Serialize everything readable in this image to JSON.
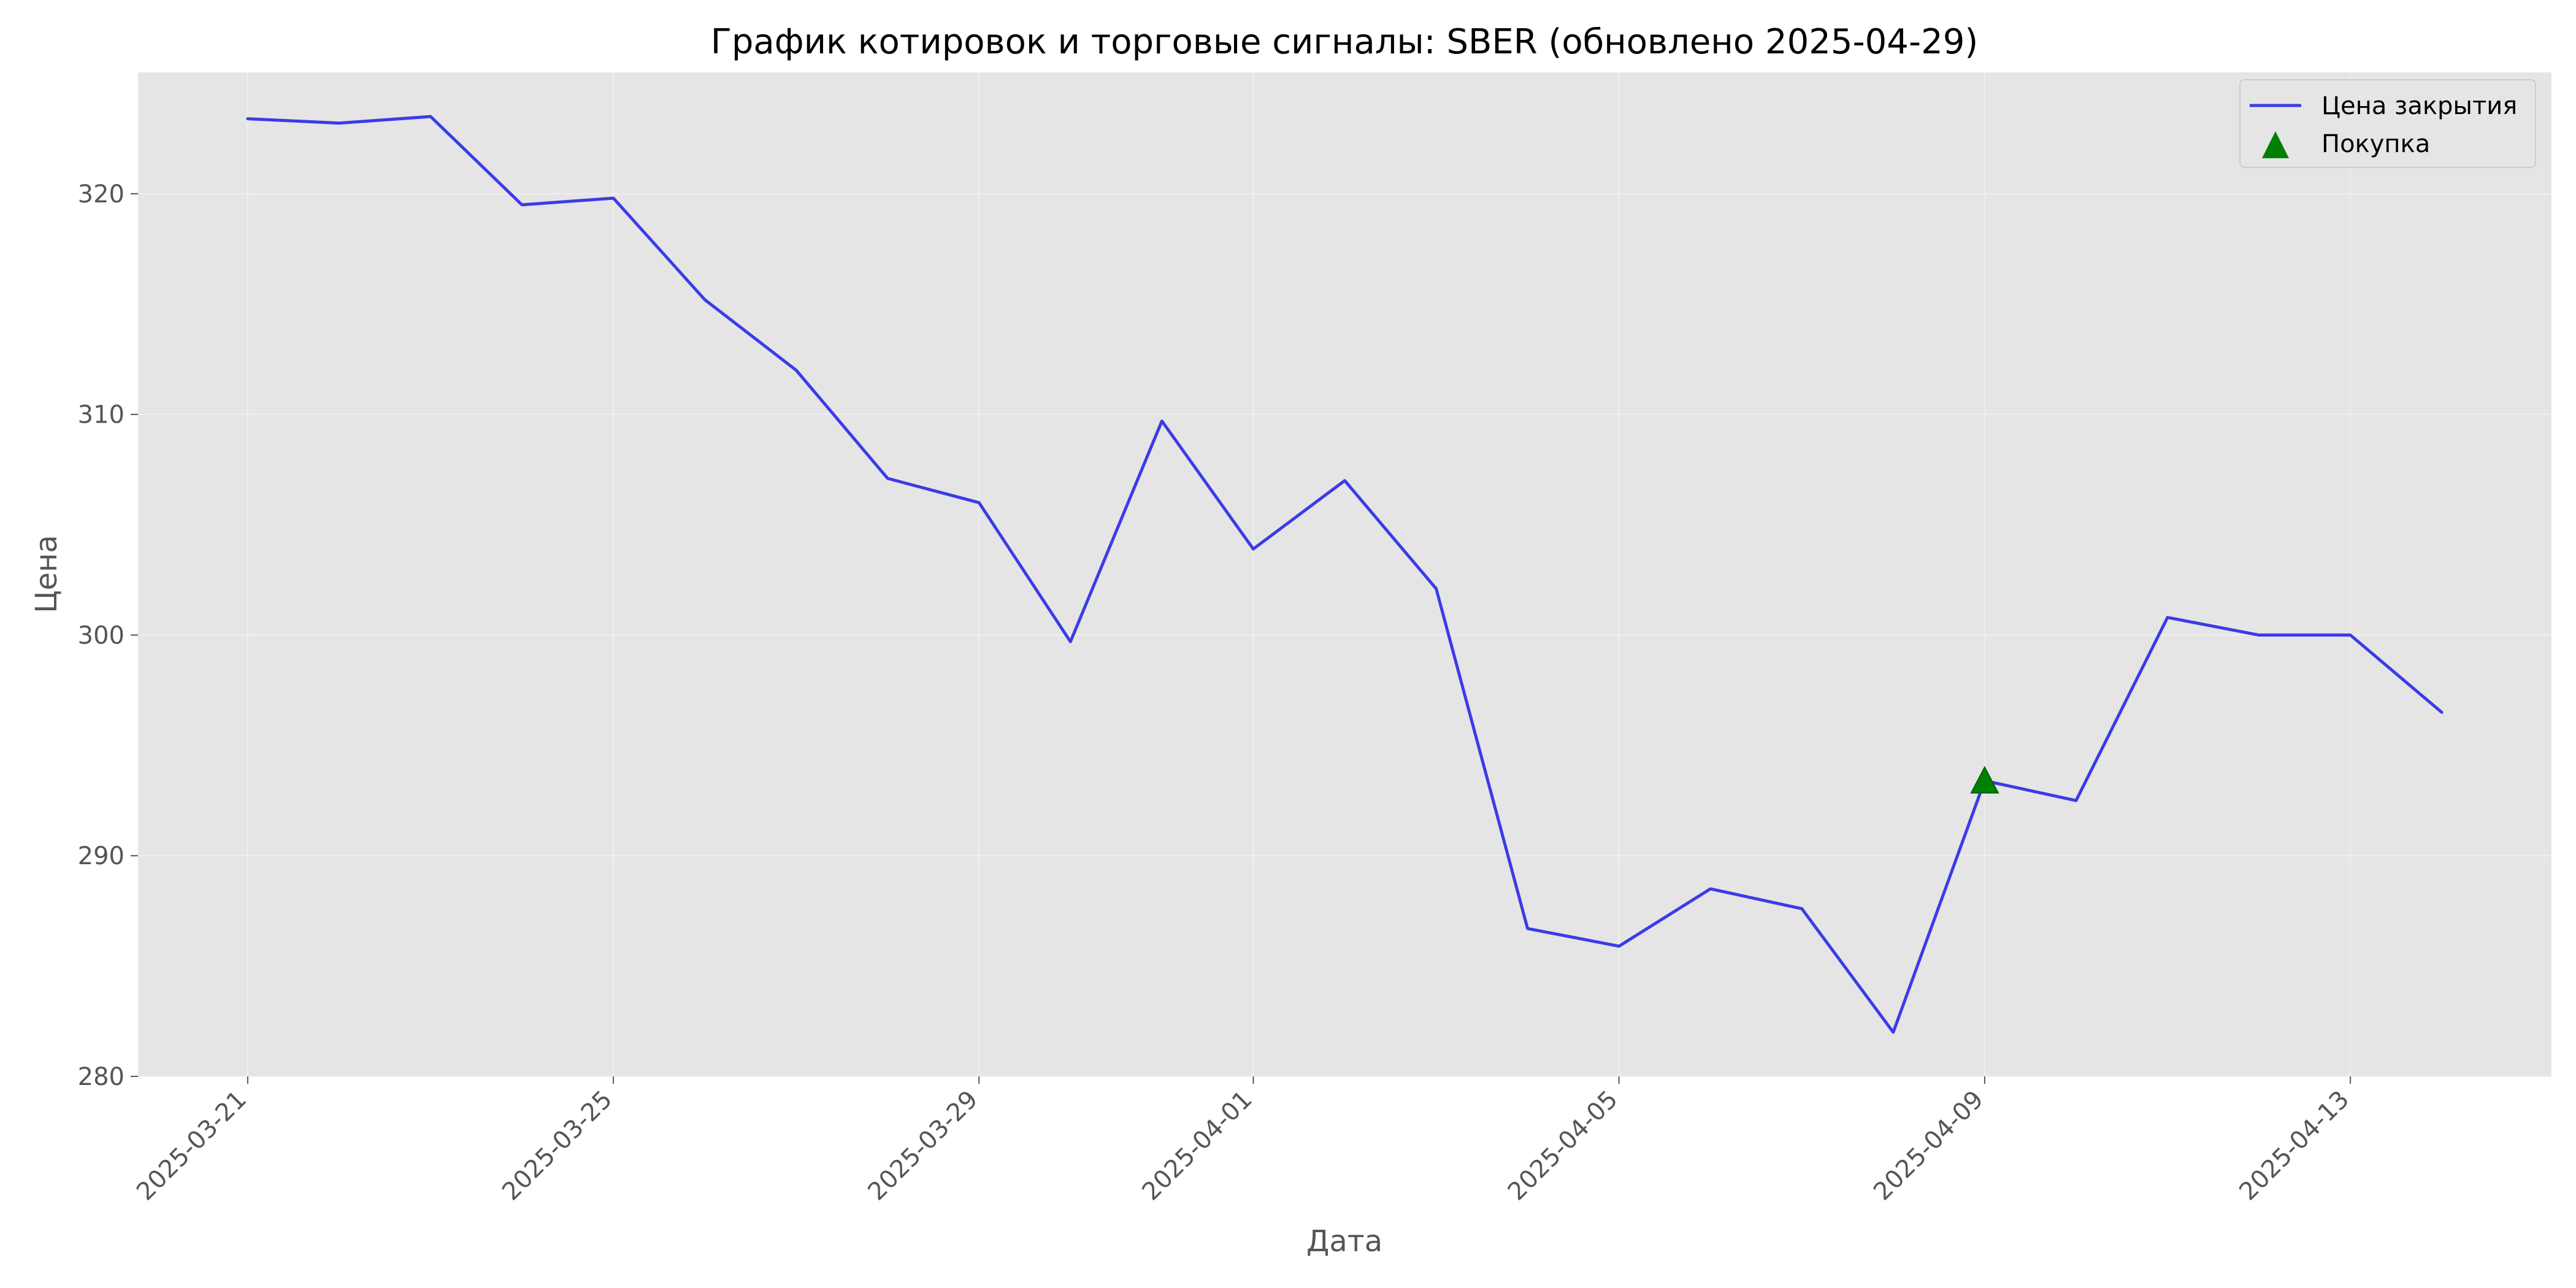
{
  "chart_data": {
    "type": "line",
    "title": "График котировок и торговые сигналы: SBER (обновлено 2025-04-29)",
    "xlabel": "Дата",
    "ylabel": "Цена",
    "ylim": [
      280,
      325.5
    ],
    "xlim": [
      "2025-03-19T19:12",
      "2025-04-15T04:48"
    ],
    "x_ticks": [
      "2025-03-21",
      "2025-03-25",
      "2025-03-29",
      "2025-04-01",
      "2025-04-05",
      "2025-04-09",
      "2025-04-13"
    ],
    "y_ticks": [
      280,
      290,
      300,
      310,
      320
    ],
    "grid": true,
    "legend_position": "top-right",
    "legend": [
      {
        "label": "Цена закрытия",
        "type": "line",
        "color": "#3b3be8"
      },
      {
        "label": "Покупка",
        "type": "marker",
        "color": "#008000"
      }
    ],
    "series": [
      {
        "name": "Цена закрытия",
        "color": "#3b3be8",
        "x": [
          "2025-03-21",
          "2025-03-22",
          "2025-03-23",
          "2025-03-24",
          "2025-03-25",
          "2025-03-26",
          "2025-03-27",
          "2025-03-28",
          "2025-03-29",
          "2025-03-30",
          "2025-03-31",
          "2025-04-01",
          "2025-04-02",
          "2025-04-03",
          "2025-04-04",
          "2025-04-05",
          "2025-04-06",
          "2025-04-07",
          "2025-04-08",
          "2025-04-09",
          "2025-04-10",
          "2025-04-11",
          "2025-04-12",
          "2025-04-13",
          "2025-04-14"
        ],
        "y": [
          323.4,
          323.2,
          323.5,
          319.5,
          319.8,
          315.2,
          312.0,
          307.1,
          306.0,
          299.7,
          309.7,
          303.9,
          307.0,
          302.1,
          286.7,
          285.9,
          288.5,
          287.6,
          282.0,
          293.4,
          292.5,
          300.8,
          300.0,
          300.0,
          296.5
        ]
      },
      {
        "name": "Покупка",
        "type": "scatter",
        "color": "#008000",
        "x": [
          "2025-04-09"
        ],
        "y": [
          293.4
        ]
      }
    ]
  }
}
